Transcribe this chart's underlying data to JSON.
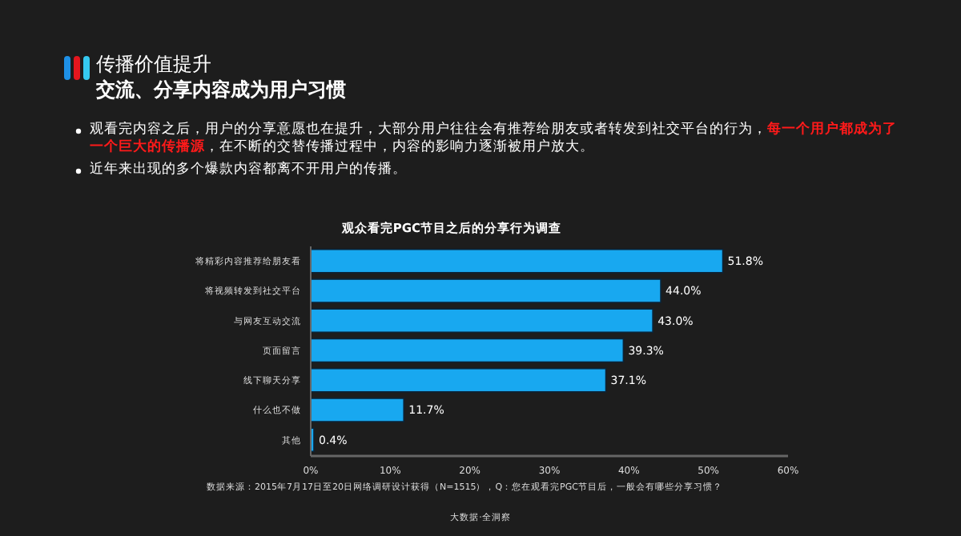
{
  "chart_data": {
    "type": "bar",
    "orientation": "horizontal",
    "title": "传播价值提升",
    "subtitle": "交流、分享内容成为用户习惯",
    "annotations": [
      "观看完内容之后，用户的分享意愿也在提升，大部分用户往往会有推荐给朋友或者转发到社交平台的行为，",
      "每一个用户都成为了一个巨大的传播源",
      "，在不断的交替传播过程中，内容的影响力逐渐被用户放大。",
      "近年来出现的多个爆款内容都离不开用户的传播。",
      "观众看完PGC节目之后的分享行为调查",
      "数据来源：2015年7月17日至20日网络调研设计获得（N=1515），Q：您在观看完PGC节目后，一般会有哪些分享习惯？",
      "大数据·全洞察"
    ],
    "categories": [
      "将精彩内容推荐给朋友看",
      "将视频转发到社交平台",
      "与网友互动交流",
      "页面留言",
      "线下聊天分享",
      "什么也不做",
      "其他"
    ],
    "values": [
      51.8,
      44.0,
      43.0,
      39.3,
      37.1,
      11.7,
      0.4
    ],
    "value_labels": [
      "51.8%",
      "44.0%",
      "43.0%",
      "39.3%",
      "37.1%",
      "11.7%",
      "0.4%"
    ],
    "color": "#18a8f0",
    "xlim": [
      0,
      60
    ],
    "xticks": [
      {
        "value": 0,
        "label": "0%"
      },
      {
        "value": 10,
        "label": "10%"
      },
      {
        "value": 20,
        "label": "20%"
      },
      {
        "value": 30,
        "label": "30%"
      },
      {
        "value": 40,
        "label": "40%"
      },
      {
        "value": 50,
        "label": "50%"
      },
      {
        "value": 60,
        "label": "60%"
      }
    ],
    "grid": false
  }
}
